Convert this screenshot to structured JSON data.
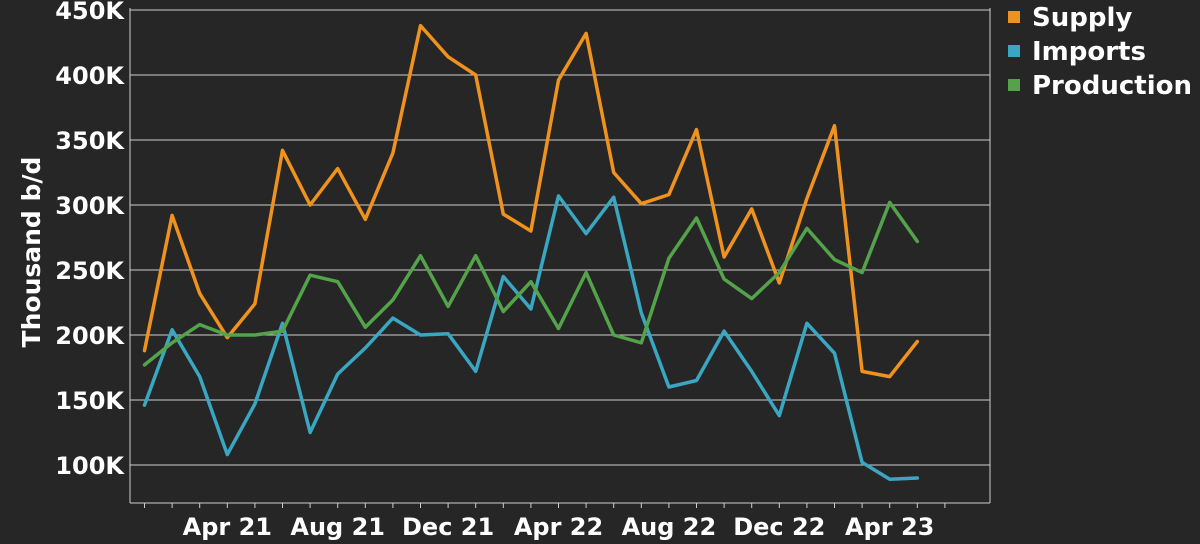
{
  "chart_data": {
    "type": "line",
    "ylabel": "Thousand b/d",
    "xlabel": "",
    "ylim": [
      50,
      450
    ],
    "y_ticks": [
      {
        "value": 100,
        "label": "100K"
      },
      {
        "value": 150,
        "label": "150K"
      },
      {
        "value": 200,
        "label": "200K"
      },
      {
        "value": 250,
        "label": "250K"
      },
      {
        "value": 300,
        "label": "300K"
      },
      {
        "value": 350,
        "label": "350K"
      },
      {
        "value": 400,
        "label": "400K"
      },
      {
        "value": 450,
        "label": "450K"
      }
    ],
    "x": [
      "Jan 21",
      "Feb 21",
      "Mar 21",
      "Apr 21",
      "May 21",
      "Jun 21",
      "Jul 21",
      "Aug 21",
      "Sep 21",
      "Oct 21",
      "Nov 21",
      "Dec 21",
      "Jan 22",
      "Feb 22",
      "Mar 22",
      "Apr 22",
      "May 22",
      "Jun 22",
      "Jul 22",
      "Aug 22",
      "Sep 22",
      "Oct 22",
      "Nov 22",
      "Dec 22",
      "Jan 23",
      "Feb 23",
      "Mar 23",
      "Apr 23",
      "May 23",
      "Jun 23"
    ],
    "x_tick_labels": [
      "Apr 21",
      "Aug 21",
      "Dec 21",
      "Apr 22",
      "Aug 22",
      "Dec 22",
      "Apr 23"
    ],
    "legend_position": "top-right",
    "grid": true,
    "series": [
      {
        "name": "Supply",
        "color": "#f0921e",
        "values": [
          188,
          292,
          232,
          198,
          224,
          342,
          300,
          328,
          289,
          340,
          438,
          414,
          400,
          293,
          280,
          396,
          432,
          325,
          301,
          308,
          358,
          260,
          297,
          240,
          305,
          361,
          172,
          168,
          195,
          null
        ]
      },
      {
        "name": "Imports",
        "color": "#3aa7c2",
        "values": [
          146,
          204,
          168,
          108,
          147,
          209,
          125,
          170,
          190,
          213,
          200,
          201,
          172,
          245,
          220,
          307,
          278,
          306,
          217,
          160,
          165,
          203,
          172,
          138,
          209,
          186,
          102,
          89,
          90,
          null
        ]
      },
      {
        "name": "Production",
        "color": "#54a34a",
        "values": [
          177,
          194,
          208,
          200,
          200,
          203,
          246,
          241,
          206,
          227,
          261,
          222,
          261,
          218,
          241,
          205,
          248,
          200,
          194,
          259,
          290,
          243,
          228,
          248,
          282,
          258,
          248,
          302,
          272,
          null
        ]
      }
    ]
  }
}
